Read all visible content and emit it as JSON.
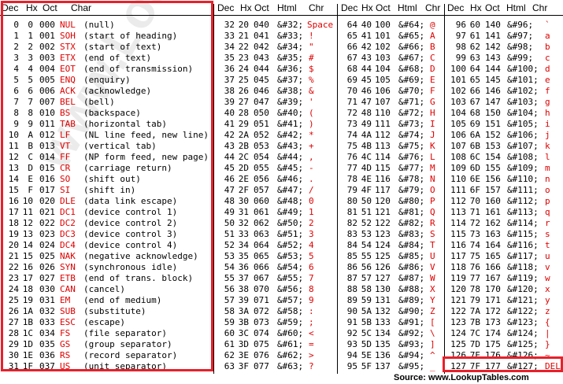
{
  "headers": {
    "g1": [
      "Dec",
      "Hx",
      "Oct",
      "Char"
    ],
    "g2": [
      "Dec",
      "Hx",
      "Oct",
      "Html",
      "Chr"
    ],
    "g3": [
      "Dec",
      "Hx",
      "Oct",
      "Html",
      "Chr"
    ],
    "g4": [
      "Dec",
      "Hx",
      "Oct",
      "Html",
      "Chr"
    ]
  },
  "control_chars": [
    [
      "0",
      "0",
      "000",
      "NUL",
      "(null)"
    ],
    [
      "1",
      "1",
      "001",
      "SOH",
      "(start of heading)"
    ],
    [
      "2",
      "2",
      "002",
      "STX",
      "(start of text)"
    ],
    [
      "3",
      "3",
      "003",
      "ETX",
      "(end of text)"
    ],
    [
      "4",
      "4",
      "004",
      "EOT",
      "(end of transmission)"
    ],
    [
      "5",
      "5",
      "005",
      "ENQ",
      "(enquiry)"
    ],
    [
      "6",
      "6",
      "006",
      "ACK",
      "(acknowledge)"
    ],
    [
      "7",
      "7",
      "007",
      "BEL",
      "(bell)"
    ],
    [
      "8",
      "8",
      "010",
      "BS",
      "(backspace)"
    ],
    [
      "9",
      "9",
      "011",
      "TAB",
      "(horizontal tab)"
    ],
    [
      "10",
      "A",
      "012",
      "LF",
      "(NL line feed, new line)"
    ],
    [
      "11",
      "B",
      "013",
      "VT",
      "(vertical tab)"
    ],
    [
      "12",
      "C",
      "014",
      "FF",
      "(NP form feed, new page)"
    ],
    [
      "13",
      "D",
      "015",
      "CR",
      "(carriage return)"
    ],
    [
      "14",
      "E",
      "016",
      "SO",
      "(shift out)"
    ],
    [
      "15",
      "F",
      "017",
      "SI",
      "(shift in)"
    ],
    [
      "16",
      "10",
      "020",
      "DLE",
      "(data link escape)"
    ],
    [
      "17",
      "11",
      "021",
      "DC1",
      "(device control 1)"
    ],
    [
      "18",
      "12",
      "022",
      "DC2",
      "(device control 2)"
    ],
    [
      "19",
      "13",
      "023",
      "DC3",
      "(device control 3)"
    ],
    [
      "20",
      "14",
      "024",
      "DC4",
      "(device control 4)"
    ],
    [
      "21",
      "15",
      "025",
      "NAK",
      "(negative acknowledge)"
    ],
    [
      "22",
      "16",
      "026",
      "SYN",
      "(synchronous idle)"
    ],
    [
      "23",
      "17",
      "027",
      "ETB",
      "(end of trans. block)"
    ],
    [
      "24",
      "18",
      "030",
      "CAN",
      "(cancel)"
    ],
    [
      "25",
      "19",
      "031",
      "EM",
      "(end of medium)"
    ],
    [
      "26",
      "1A",
      "032",
      "SUB",
      "(substitute)"
    ],
    [
      "27",
      "1B",
      "033",
      "ESC",
      "(escape)"
    ],
    [
      "28",
      "1C",
      "034",
      "FS",
      "(file separator)"
    ],
    [
      "29",
      "1D",
      "035",
      "GS",
      "(group separator)"
    ],
    [
      "30",
      "1E",
      "036",
      "RS",
      "(record separator)"
    ],
    [
      "31",
      "1F",
      "037",
      "US",
      "(unit separator)"
    ]
  ],
  "printable_1": [
    [
      "32",
      "20",
      "040",
      "&#32;",
      "Space"
    ],
    [
      "33",
      "21",
      "041",
      "&#33;",
      "!"
    ],
    [
      "34",
      "22",
      "042",
      "&#34;",
      "\""
    ],
    [
      "35",
      "23",
      "043",
      "&#35;",
      "#"
    ],
    [
      "36",
      "24",
      "044",
      "&#36;",
      "$"
    ],
    [
      "37",
      "25",
      "045",
      "&#37;",
      "%"
    ],
    [
      "38",
      "26",
      "046",
      "&#38;",
      "&"
    ],
    [
      "39",
      "27",
      "047",
      "&#39;",
      "'"
    ],
    [
      "40",
      "28",
      "050",
      "&#40;",
      "("
    ],
    [
      "41",
      "29",
      "051",
      "&#41;",
      ")"
    ],
    [
      "42",
      "2A",
      "052",
      "&#42;",
      "*"
    ],
    [
      "43",
      "2B",
      "053",
      "&#43;",
      "+"
    ],
    [
      "44",
      "2C",
      "054",
      "&#44;",
      ","
    ],
    [
      "45",
      "2D",
      "055",
      "&#45;",
      "-"
    ],
    [
      "46",
      "2E",
      "056",
      "&#46;",
      "."
    ],
    [
      "47",
      "2F",
      "057",
      "&#47;",
      "/"
    ],
    [
      "48",
      "30",
      "060",
      "&#48;",
      "0"
    ],
    [
      "49",
      "31",
      "061",
      "&#49;",
      "1"
    ],
    [
      "50",
      "32",
      "062",
      "&#50;",
      "2"
    ],
    [
      "51",
      "33",
      "063",
      "&#51;",
      "3"
    ],
    [
      "52",
      "34",
      "064",
      "&#52;",
      "4"
    ],
    [
      "53",
      "35",
      "065",
      "&#53;",
      "5"
    ],
    [
      "54",
      "36",
      "066",
      "&#54;",
      "6"
    ],
    [
      "55",
      "37",
      "067",
      "&#55;",
      "7"
    ],
    [
      "56",
      "38",
      "070",
      "&#56;",
      "8"
    ],
    [
      "57",
      "39",
      "071",
      "&#57;",
      "9"
    ],
    [
      "58",
      "3A",
      "072",
      "&#58;",
      ":"
    ],
    [
      "59",
      "3B",
      "073",
      "&#59;",
      ";"
    ],
    [
      "60",
      "3C",
      "074",
      "&#60;",
      "<"
    ],
    [
      "61",
      "3D",
      "075",
      "&#61;",
      "="
    ],
    [
      "62",
      "3E",
      "076",
      "&#62;",
      ">"
    ],
    [
      "63",
      "3F",
      "077",
      "&#63;",
      "?"
    ]
  ],
  "printable_2": [
    [
      "64",
      "40",
      "100",
      "&#64;",
      "@"
    ],
    [
      "65",
      "41",
      "101",
      "&#65;",
      "A"
    ],
    [
      "66",
      "42",
      "102",
      "&#66;",
      "B"
    ],
    [
      "67",
      "43",
      "103",
      "&#67;",
      "C"
    ],
    [
      "68",
      "44",
      "104",
      "&#68;",
      "D"
    ],
    [
      "69",
      "45",
      "105",
      "&#69;",
      "E"
    ],
    [
      "70",
      "46",
      "106",
      "&#70;",
      "F"
    ],
    [
      "71",
      "47",
      "107",
      "&#71;",
      "G"
    ],
    [
      "72",
      "48",
      "110",
      "&#72;",
      "H"
    ],
    [
      "73",
      "49",
      "111",
      "&#73;",
      "I"
    ],
    [
      "74",
      "4A",
      "112",
      "&#74;",
      "J"
    ],
    [
      "75",
      "4B",
      "113",
      "&#75;",
      "K"
    ],
    [
      "76",
      "4C",
      "114",
      "&#76;",
      "L"
    ],
    [
      "77",
      "4D",
      "115",
      "&#77;",
      "M"
    ],
    [
      "78",
      "4E",
      "116",
      "&#78;",
      "N"
    ],
    [
      "79",
      "4F",
      "117",
      "&#79;",
      "O"
    ],
    [
      "80",
      "50",
      "120",
      "&#80;",
      "P"
    ],
    [
      "81",
      "51",
      "121",
      "&#81;",
      "Q"
    ],
    [
      "82",
      "52",
      "122",
      "&#82;",
      "R"
    ],
    [
      "83",
      "53",
      "123",
      "&#83;",
      "S"
    ],
    [
      "84",
      "54",
      "124",
      "&#84;",
      "T"
    ],
    [
      "85",
      "55",
      "125",
      "&#85;",
      "U"
    ],
    [
      "86",
      "56",
      "126",
      "&#86;",
      "V"
    ],
    [
      "87",
      "57",
      "127",
      "&#87;",
      "W"
    ],
    [
      "88",
      "58",
      "130",
      "&#88;",
      "X"
    ],
    [
      "89",
      "59",
      "131",
      "&#89;",
      "Y"
    ],
    [
      "90",
      "5A",
      "132",
      "&#90;",
      "Z"
    ],
    [
      "91",
      "5B",
      "133",
      "&#91;",
      "["
    ],
    [
      "92",
      "5C",
      "134",
      "&#92;",
      "\\"
    ],
    [
      "93",
      "5D",
      "135",
      "&#93;",
      "]"
    ],
    [
      "94",
      "5E",
      "136",
      "&#94;",
      "^"
    ],
    [
      "95",
      "5F",
      "137",
      "&#95;",
      "_"
    ]
  ],
  "printable_3": [
    [
      "96",
      "60",
      "140",
      "&#96;",
      "`"
    ],
    [
      "97",
      "61",
      "141",
      "&#97;",
      "a"
    ],
    [
      "98",
      "62",
      "142",
      "&#98;",
      "b"
    ],
    [
      "99",
      "63",
      "143",
      "&#99;",
      "c"
    ],
    [
      "100",
      "64",
      "144",
      "&#100;",
      "d"
    ],
    [
      "101",
      "65",
      "145",
      "&#101;",
      "e"
    ],
    [
      "102",
      "66",
      "146",
      "&#102;",
      "f"
    ],
    [
      "103",
      "67",
      "147",
      "&#103;",
      "g"
    ],
    [
      "104",
      "68",
      "150",
      "&#104;",
      "h"
    ],
    [
      "105",
      "69",
      "151",
      "&#105;",
      "i"
    ],
    [
      "106",
      "6A",
      "152",
      "&#106;",
      "j"
    ],
    [
      "107",
      "6B",
      "153",
      "&#107;",
      "k"
    ],
    [
      "108",
      "6C",
      "154",
      "&#108;",
      "l"
    ],
    [
      "109",
      "6D",
      "155",
      "&#109;",
      "m"
    ],
    [
      "110",
      "6E",
      "156",
      "&#110;",
      "n"
    ],
    [
      "111",
      "6F",
      "157",
      "&#111;",
      "o"
    ],
    [
      "112",
      "70",
      "160",
      "&#112;",
      "p"
    ],
    [
      "113",
      "71",
      "161",
      "&#113;",
      "q"
    ],
    [
      "114",
      "72",
      "162",
      "&#114;",
      "r"
    ],
    [
      "115",
      "73",
      "163",
      "&#115;",
      "s"
    ],
    [
      "116",
      "74",
      "164",
      "&#116;",
      "t"
    ],
    [
      "117",
      "75",
      "165",
      "&#117;",
      "u"
    ],
    [
      "118",
      "76",
      "166",
      "&#118;",
      "v"
    ],
    [
      "119",
      "77",
      "167",
      "&#119;",
      "w"
    ],
    [
      "120",
      "78",
      "170",
      "&#120;",
      "x"
    ],
    [
      "121",
      "79",
      "171",
      "&#121;",
      "y"
    ],
    [
      "122",
      "7A",
      "172",
      "&#122;",
      "z"
    ],
    [
      "123",
      "7B",
      "173",
      "&#123;",
      "{"
    ],
    [
      "124",
      "7C",
      "174",
      "&#124;",
      "|"
    ],
    [
      "125",
      "7D",
      "175",
      "&#125;",
      "}"
    ],
    [
      "126",
      "7E",
      "176",
      "&#126;",
      "~"
    ],
    [
      "127",
      "7F",
      "177",
      "&#127;",
      "DEL"
    ]
  ],
  "source_label": "Source:  www.LookupTables.com",
  "watermark": "www.LookupTables.com",
  "colors": {
    "highlight_box": "#e8202a",
    "char_text": "#e00000",
    "text": "#000000"
  }
}
